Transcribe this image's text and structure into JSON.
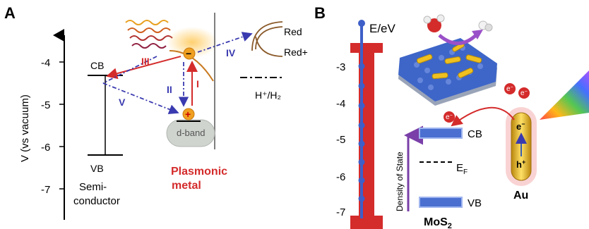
{
  "panel_a": {
    "label": "A",
    "y_axis_label": "V (vs vacuum)",
    "ticks": [
      "-4",
      "-5",
      "-6",
      "-7"
    ],
    "cb_label": "CB",
    "vb_label": "VB",
    "semiconductor_line1": "Semi-",
    "semiconductor_line2": "conductor",
    "dband_label": "d-band",
    "metal_line1": "Plasmonic",
    "metal_line2": "metal",
    "red_label": "Red",
    "redplus_label": "Red+",
    "hydrogen_label": "H⁺/H₂",
    "path_labels": {
      "i": "I",
      "ii": "II",
      "iii": "III",
      "iv": "IV",
      "v": "V"
    },
    "minus": "−",
    "plus": "+"
  },
  "panel_b": {
    "label": "B",
    "ev_label": "E/eV",
    "ticks": [
      "-3",
      "-4",
      "-5",
      "-6",
      "-7"
    ],
    "cb_label": "CB",
    "vb_label": "VB",
    "ef_label": "E",
    "ef_sub": "F",
    "dos_label": "Density of State",
    "mos2_label": "MoS",
    "mos2_sub": "2",
    "au_label": "Au",
    "electron_label": "e",
    "electron_sup": "−",
    "hole_label": "h",
    "hole_sup": "+"
  },
  "colors": {
    "red": "#d42b2b",
    "blue_dash": "#3a3ab0",
    "bar_red": "#d42b2b",
    "bar_blue": "#3e5fc8",
    "band_blue": "#4a6fd1",
    "gold": "#e8b62e",
    "purple": "#7a3fa8"
  }
}
